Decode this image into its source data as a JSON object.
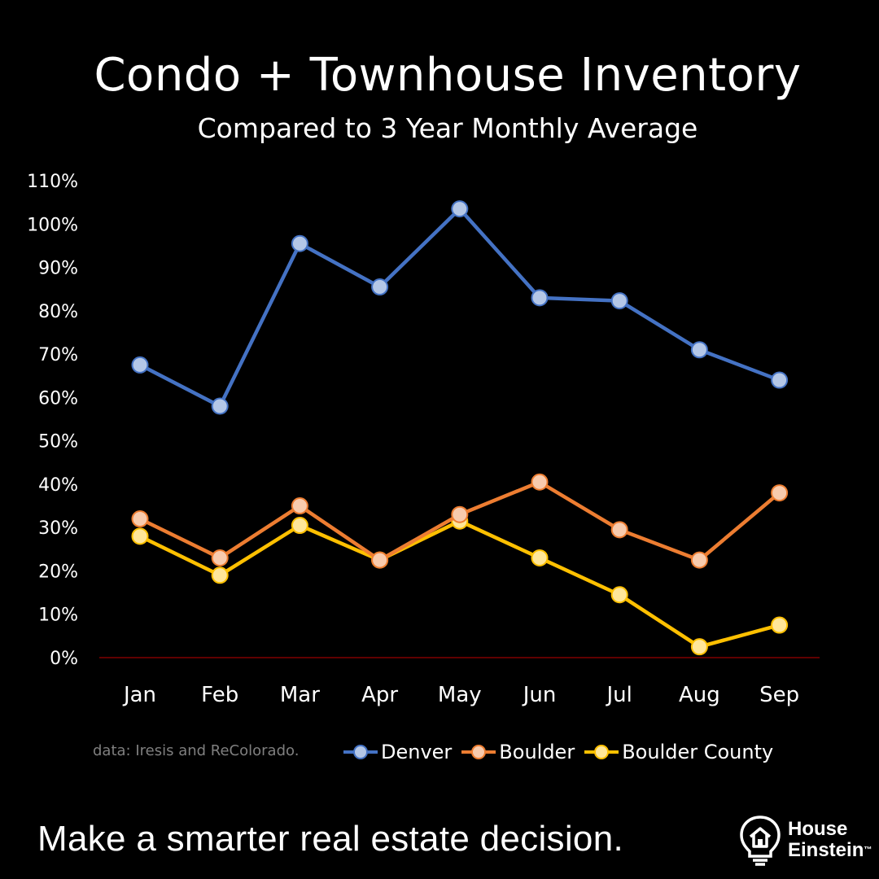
{
  "chart_data": {
    "type": "line",
    "title": "Condo + Townhouse Inventory",
    "subtitle": "Compared to 3 Year Monthly Average",
    "categories": [
      "Jan",
      "Feb",
      "Mar",
      "Apr",
      "May",
      "Jun",
      "Jul",
      "Aug",
      "Sep"
    ],
    "ylim": [
      0,
      110
    ],
    "yticks": [
      0,
      10,
      20,
      30,
      40,
      50,
      60,
      70,
      80,
      90,
      100,
      110
    ],
    "ytick_labels": [
      "0%",
      "10%",
      "20%",
      "30%",
      "40%",
      "50%",
      "60%",
      "70%",
      "80%",
      "90%",
      "100%",
      "110%"
    ],
    "grid": false,
    "legend_position": "bottom",
    "series": [
      {
        "name": "Denver",
        "values": [
          67.5,
          58,
          95.5,
          85.5,
          103.5,
          83,
          82.3,
          71,
          64
        ],
        "line_color": "#4472c4",
        "marker_color": "#b4c7e7"
      },
      {
        "name": "Boulder",
        "values": [
          32,
          23,
          35,
          22.5,
          33,
          40.5,
          29.5,
          22.5,
          38
        ],
        "line_color": "#ed7d31",
        "marker_color": "#f8cbad"
      },
      {
        "name": "Boulder County",
        "values": [
          28,
          19,
          30.5,
          22.5,
          31.5,
          23,
          14.5,
          2.5,
          7.5
        ],
        "line_color": "#ffc000",
        "marker_color": "#ffe699"
      }
    ],
    "baseline_color": "#c00000"
  },
  "source_note": "data: Iresis and ReColorado.",
  "tagline": "Make a smarter real estate decision.",
  "brand": {
    "line1": "House",
    "line2": "Einstein",
    "tm": "™"
  }
}
